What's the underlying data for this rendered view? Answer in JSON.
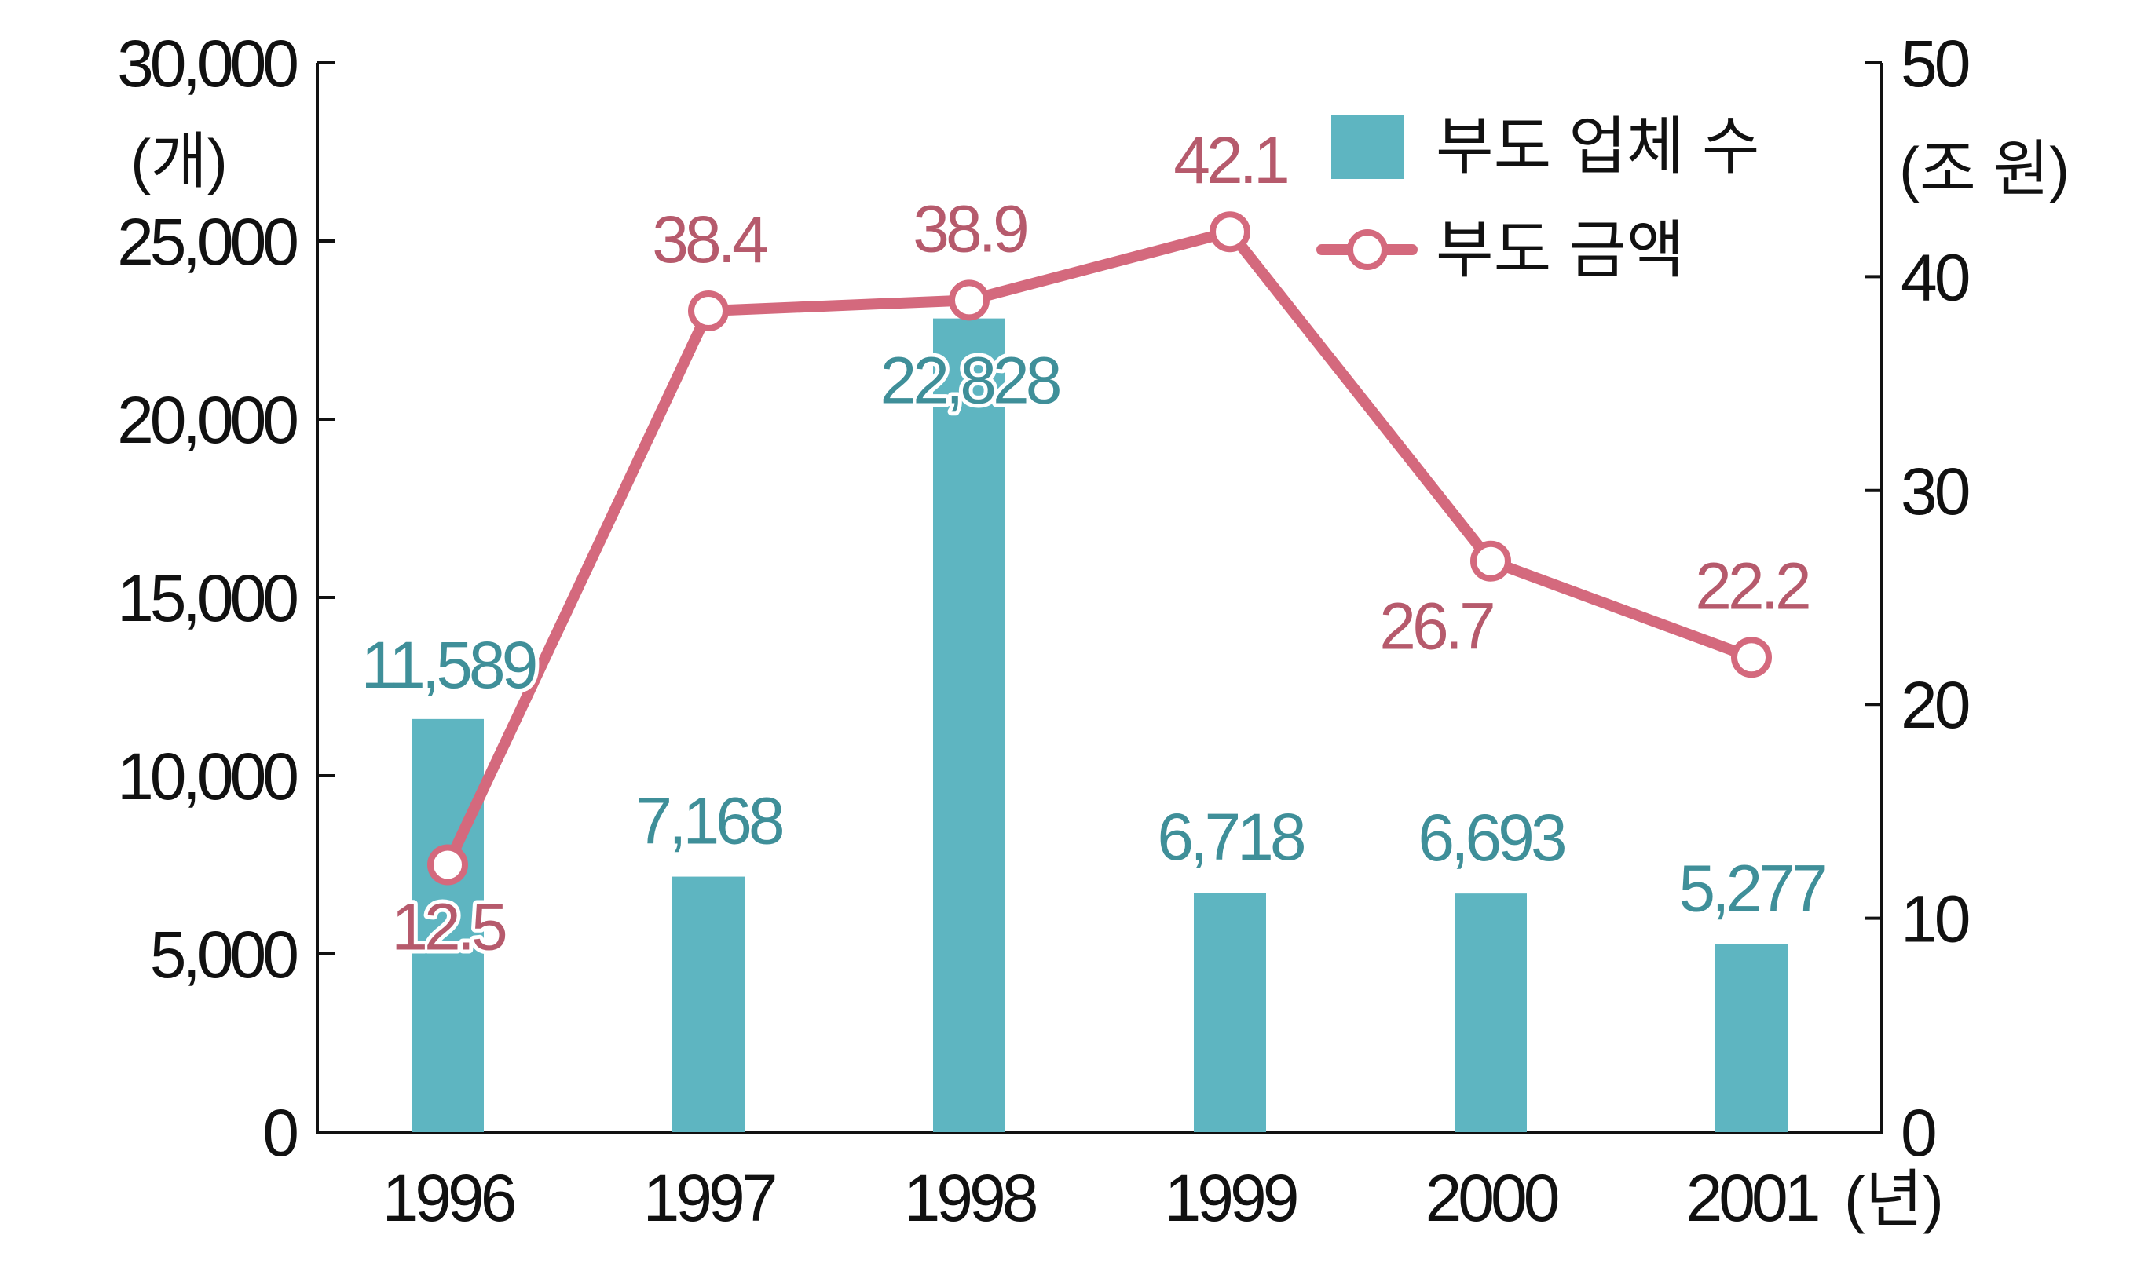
{
  "chart_data": {
    "type": "bar",
    "categories": [
      "1996",
      "1997",
      "1998",
      "1999",
      "2000",
      "2001"
    ],
    "x_unit": "(년)",
    "y_left": {
      "unit": "(개)",
      "ylim": [
        0,
        30000
      ],
      "ticks": [
        "0",
        "5,000",
        "10,000",
        "15,000",
        "20,000",
        "25,000",
        "30,000"
      ]
    },
    "y_right": {
      "unit": "(조 원)",
      "ylim": [
        0,
        50
      ],
      "ticks": [
        "0",
        "10",
        "20",
        "30",
        "40",
        "50"
      ]
    },
    "series": [
      {
        "name": "부도 업체 수",
        "type": "bar",
        "axis": "left",
        "values": [
          11589,
          7168,
          22828,
          6718,
          6693,
          5277
        ],
        "labels": [
          "11,589",
          "7,168",
          "22,828",
          "6,718",
          "6,693",
          "5,277"
        ],
        "color": "#5eb5c1",
        "label_color": "#3f8f99"
      },
      {
        "name": "부도 금액",
        "type": "line",
        "axis": "right",
        "values": [
          12.5,
          38.4,
          38.9,
          42.1,
          26.7,
          22.2
        ],
        "labels": [
          "12.5",
          "38.4",
          "38.9",
          "42.1",
          "26.7",
          "22.2"
        ],
        "color": "#d4697d",
        "label_color": "#b65a6c"
      }
    ],
    "legend": "top-right",
    "grid": false
  }
}
